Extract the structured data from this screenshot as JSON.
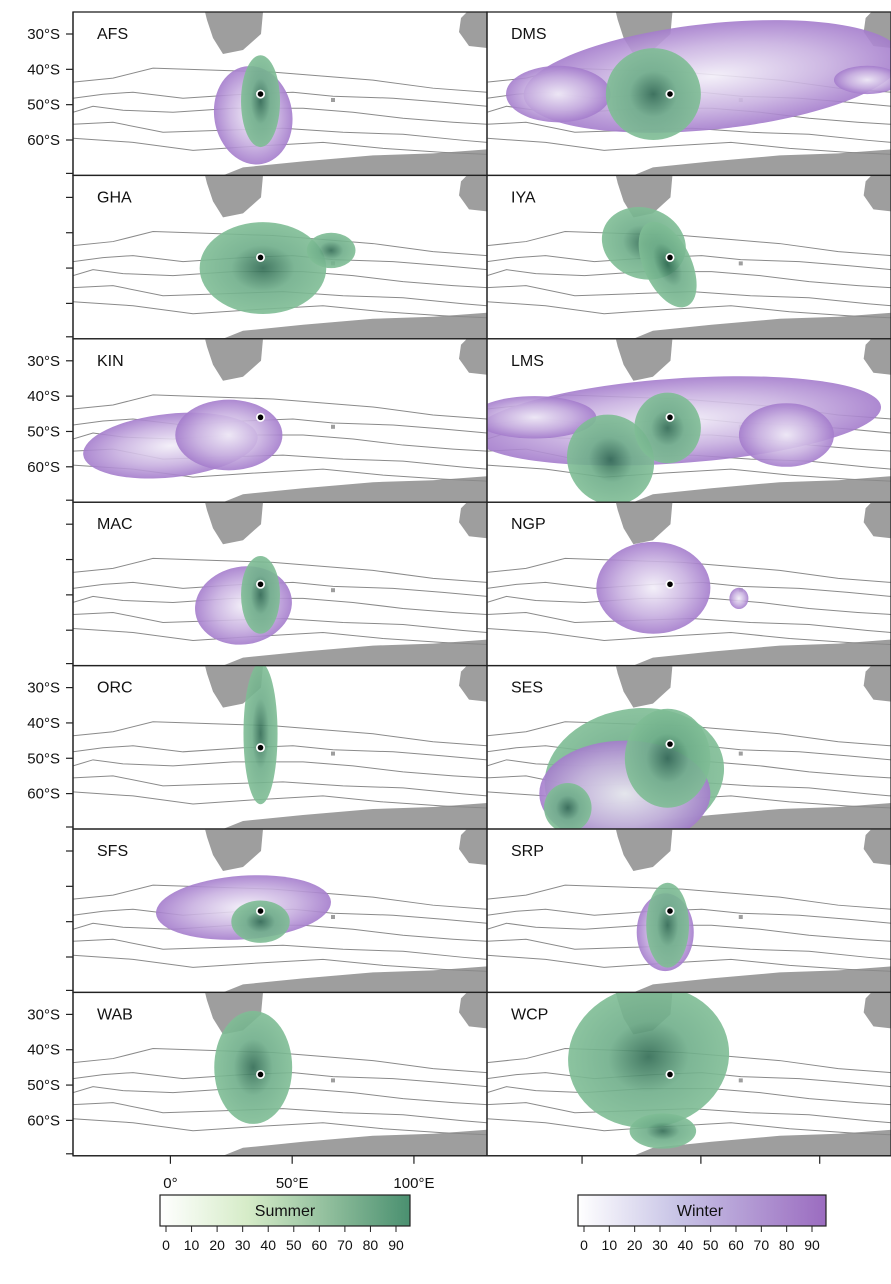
{
  "figure": {
    "panels": [
      {
        "code": "AFS"
      },
      {
        "code": "DMS"
      },
      {
        "code": "GHA"
      },
      {
        "code": "IYA"
      },
      {
        "code": "KIN"
      },
      {
        "code": "LMS"
      },
      {
        "code": "MAC"
      },
      {
        "code": "NGP"
      },
      {
        "code": "ORC"
      },
      {
        "code": "SES"
      },
      {
        "code": "SFS"
      },
      {
        "code": "SRP"
      },
      {
        "code": "WAB"
      },
      {
        "code": "WCP"
      }
    ],
    "y_axis": {
      "tick_labels": [
        "30°S",
        "40°S",
        "50°S",
        "60°S"
      ],
      "latitudes": [
        30,
        40,
        50,
        60
      ],
      "labeled_rows": [
        0,
        2,
        4,
        6
      ]
    },
    "x_axis": {
      "tick_labels": [
        "0°",
        "50°E",
        "100°E"
      ],
      "longitudes": [
        0,
        50,
        100
      ]
    },
    "legend": {
      "summer": {
        "title": "Summer",
        "ticks": [
          "0",
          "10",
          "20",
          "30",
          "40",
          "50",
          "60",
          "70",
          "80",
          "90"
        ],
        "color_start": "#ffffff",
        "color_end": "#4a9070"
      },
      "winter": {
        "title": "Winter",
        "ticks": [
          "0",
          "10",
          "20",
          "30",
          "40",
          "50",
          "60",
          "70",
          "80",
          "90"
        ],
        "color_start": "#ffffff",
        "color_end": "#9b6cc0"
      }
    },
    "colors": {
      "land": "#9e9e9e",
      "front_lines": "#8a8a8a",
      "summer_fill": "#4e9a74",
      "winter_fill": "#a078c8",
      "colony_dot": "#000000"
    }
  }
}
